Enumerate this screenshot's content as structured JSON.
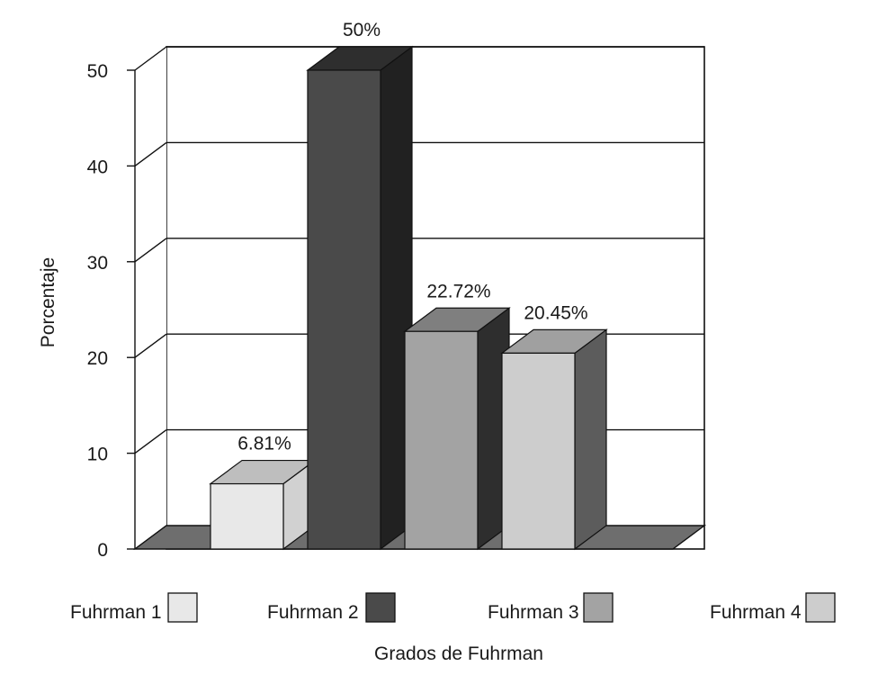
{
  "chart_data": {
    "type": "bar",
    "categories": [
      "Fuhrman 1",
      "Fuhrman 2",
      "Fuhrman 3",
      "Fuhrman 4"
    ],
    "values": [
      6.81,
      50,
      22.72,
      20.45
    ],
    "data_labels": [
      "6.81%",
      "50%",
      "22.72%",
      "20.45%"
    ],
    "title": "",
    "xlabel": "Grados de Fuhrman",
    "ylabel": "Porcentaje",
    "ylim": [
      0,
      50
    ],
    "yticks": [
      0,
      10,
      20,
      30,
      40,
      50
    ],
    "ytick_labels": [
      "0",
      "10",
      "20",
      "30",
      "40",
      "50"
    ],
    "grid": true,
    "style": "3d",
    "legend_position": "bottom",
    "colors": {
      "Fuhrman 1": "#e8e8e8",
      "Fuhrman 2": "#4a4a4a",
      "Fuhrman 3": "#a3a3a3",
      "Fuhrman 4": "#cdcdcd",
      "floor": "#6e6e6e"
    }
  }
}
